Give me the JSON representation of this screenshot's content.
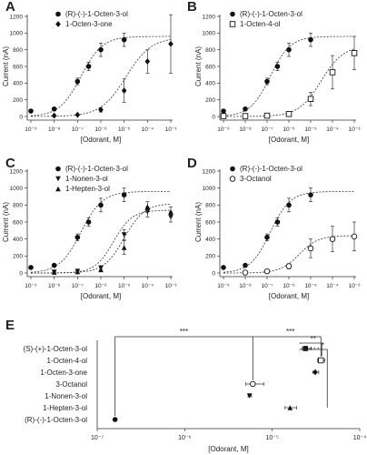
{
  "chart_data": [
    {
      "panel": "A",
      "type": "scatter",
      "xlabel": "[Odorant, M]",
      "ylabel": "Current (nA)",
      "xscale": "log",
      "xlim": [
        1e-09,
        0.001
      ],
      "ylim": [
        0,
        1200
      ],
      "xtick_labels": [
        "10⁻⁹",
        "10⁻⁸",
        "10⁻⁷",
        "10⁻⁶",
        "10⁻⁵",
        "10⁻⁴",
        "10⁻³"
      ],
      "yticks": [
        0,
        200,
        400,
        600,
        800,
        1000,
        1200
      ],
      "legend": "top-left",
      "series": [
        {
          "name": "(R)-(-)-1-Octen-3-ol",
          "marker": "circle",
          "x": [
            1e-09,
            1e-08,
            1e-07,
            3e-07,
            1e-06,
            1e-05
          ],
          "y": [
            65,
            90,
            420,
            600,
            800,
            920
          ],
          "err": [
            10,
            15,
            40,
            50,
            80,
            80
          ],
          "fit": {
            "top": 960,
            "ec50": 1.4e-07,
            "hill": 0.95
          }
        },
        {
          "name": "1-Octen-3-one",
          "marker": "diamond",
          "x": [
            1e-08,
            1e-07,
            1e-06,
            1e-05,
            0.0001,
            0.001
          ],
          "y": [
            10,
            20,
            80,
            310,
            660,
            870
          ],
          "err": [
            5,
            8,
            25,
            140,
            140,
            350
          ],
          "fit": {
            "top": 950,
            "ec50": 1.2e-05,
            "hill": 0.8
          }
        }
      ]
    },
    {
      "panel": "B",
      "type": "scatter",
      "xlabel": "[Odorant, M]",
      "ylabel": "Current (nA)",
      "xscale": "log",
      "xlim": [
        1e-09,
        0.001
      ],
      "ylim": [
        0,
        1200
      ],
      "xtick_labels": [
        "10⁻⁹",
        "10⁻⁸",
        "10⁻⁷",
        "10⁻⁶",
        "10⁻⁵",
        "10⁻⁴",
        "10⁻³"
      ],
      "yticks": [
        0,
        200,
        400,
        600,
        800,
        1000,
        1200
      ],
      "legend": "top-left",
      "series": [
        {
          "name": "(R)-(-)-1-Octen-3-ol",
          "marker": "circle",
          "x": [
            1e-09,
            1e-08,
            1e-07,
            3e-07,
            1e-06,
            1e-05
          ],
          "y": [
            65,
            90,
            420,
            600,
            800,
            920
          ],
          "err": [
            10,
            15,
            40,
            50,
            80,
            80
          ],
          "fit": {
            "top": 960,
            "ec50": 1.4e-07,
            "hill": 0.95
          }
        },
        {
          "name": "1-Octen-4-ol",
          "marker": "square-open",
          "x": [
            1e-09,
            1e-08,
            1e-07,
            1e-06,
            1e-05,
            0.0001,
            0.001
          ],
          "y": [
            5,
            5,
            10,
            30,
            210,
            530,
            760
          ],
          "err": [
            5,
            5,
            8,
            15,
            80,
            200,
            200
          ],
          "fit": {
            "top": 850,
            "ec50": 3e-05,
            "hill": 0.85
          }
        }
      ]
    },
    {
      "panel": "C",
      "type": "scatter",
      "xlabel": "[Odorant, M]",
      "ylabel": "Current (nA)",
      "xscale": "log",
      "xlim": [
        1e-09,
        0.001
      ],
      "ylim": [
        0,
        1200
      ],
      "xtick_labels": [
        "10⁻⁹",
        "10⁻⁸",
        "10⁻⁷",
        "10⁻⁶",
        "10⁻⁵",
        "10⁻⁴",
        "10⁻³"
      ],
      "yticks": [
        0,
        200,
        400,
        600,
        800,
        1000,
        1200
      ],
      "legend": "top-left",
      "series": [
        {
          "name": "(R)-(-)-1-Octen-3-ol",
          "marker": "circle",
          "x": [
            1e-09,
            1e-08,
            1e-07,
            3e-07,
            1e-06,
            1e-05
          ],
          "y": [
            65,
            90,
            420,
            600,
            800,
            920
          ],
          "err": [
            10,
            15,
            40,
            50,
            80,
            80
          ],
          "fit": {
            "top": 960,
            "ec50": 1.4e-07,
            "hill": 0.95
          }
        },
        {
          "name": "1-Nonen-3-ol",
          "marker": "triangle-down",
          "x": [
            1e-08,
            1e-07,
            1e-06,
            1e-05,
            0.0001,
            0.001
          ],
          "y": [
            10,
            20,
            60,
            450,
            720,
            660
          ],
          "err": [
            5,
            8,
            20,
            60,
            60,
            60
          ],
          "fit": {
            "top": 740,
            "ec50": 3.5e-06,
            "hill": 1.1
          }
        },
        {
          "name": "1-Hepten-3-ol",
          "marker": "triangle-up",
          "x": [
            1e-08,
            1e-07,
            1e-06,
            1e-05,
            0.0001,
            0.001
          ],
          "y": [
            10,
            15,
            40,
            300,
            780,
            720
          ],
          "err": [
            5,
            8,
            20,
            80,
            60,
            60
          ],
          "fit": {
            "top": 820,
            "ec50": 1e-05,
            "hill": 1.0
          }
        }
      ]
    },
    {
      "panel": "D",
      "type": "scatter",
      "xlabel": "[Odorant, M]",
      "ylabel": "Current (nA)",
      "xscale": "log",
      "xlim": [
        1e-09,
        0.001
      ],
      "ylim": [
        0,
        1200
      ],
      "xtick_labels": [
        "10⁻⁹",
        "10⁻⁸",
        "10⁻⁷",
        "10⁻⁶",
        "10⁻⁵",
        "10⁻⁴",
        "10⁻³"
      ],
      "yticks": [
        0,
        200,
        400,
        600,
        800,
        1000,
        1200
      ],
      "legend": "top-left",
      "series": [
        {
          "name": "(R)-(-)-1-Octen-3-ol",
          "marker": "circle",
          "x": [
            1e-09,
            1e-08,
            1e-07,
            3e-07,
            1e-06,
            1e-05
          ],
          "y": [
            65,
            90,
            420,
            600,
            800,
            920
          ],
          "err": [
            10,
            15,
            40,
            50,
            80,
            80
          ],
          "fit": {
            "top": 960,
            "ec50": 1.4e-07,
            "hill": 0.95
          }
        },
        {
          "name": "3-Octanol",
          "marker": "circle-open",
          "x": [
            1e-08,
            1e-07,
            1e-06,
            1e-05,
            0.0001,
            0.001
          ],
          "y": [
            5,
            20,
            80,
            290,
            400,
            430
          ],
          "err": [
            5,
            10,
            30,
            110,
            150,
            170
          ],
          "fit": {
            "top": 440,
            "ec50": 3e-06,
            "hill": 1.0
          }
        }
      ]
    },
    {
      "panel": "E",
      "type": "scatter",
      "xlabel": "[Odorant, M]",
      "xscale": "log",
      "xlim": [
        1e-07,
        0.0001
      ],
      "xtick_labels": [
        "10⁻⁷",
        "10⁻⁶",
        "10⁻⁵",
        "10⁻⁴"
      ],
      "categories": [
        "(S)-(+)-1-Octen-3-ol",
        "1-Octen-4-ol",
        "1-Octen-3-one",
        "3-Octanol",
        "1-Nonen-3-ol",
        "1-Hepten-3-ol",
        "(R)-(-)-1-Octen-3-ol"
      ],
      "points": [
        {
          "label": "(S)-(+)-1-Octen-3-ol",
          "x": 2.4e-05,
          "xerr_low": 2.2e-05,
          "xerr_high": 2.8e-05,
          "marker": "square-filled"
        },
        {
          "label": "1-Octen-4-ol",
          "x": 3.6e-05,
          "xerr_low": 3.3e-05,
          "xerr_high": 4e-05,
          "marker": "square-open"
        },
        {
          "label": "1-Octen-3-one",
          "x": 3.1e-05,
          "xerr_low": 2.9e-05,
          "xerr_high": 3.4e-05,
          "marker": "diamond"
        },
        {
          "label": "3-Octanol",
          "x": 6e-06,
          "xerr_low": 5e-06,
          "xerr_high": 8e-06,
          "marker": "circle-open"
        },
        {
          "label": "1-Nonen-3-ol",
          "x": 5.5e-06,
          "xerr_low": 5.3e-06,
          "xerr_high": 5.8e-06,
          "marker": "triangle-down"
        },
        {
          "label": "1-Hepten-3-ol",
          "x": 1.6e-05,
          "xerr_low": 1.4e-05,
          "xerr_high": 1.9e-05,
          "marker": "triangle-up"
        },
        {
          "label": "(R)-(-)-1-Octen-3-ol",
          "x": 1.6e-07,
          "xerr_low": 1.55e-07,
          "xerr_high": 1.65e-07,
          "marker": "circle-filled"
        }
      ],
      "significance": [
        {
          "label": "***",
          "from": "(R)-(-)-1-Octen-3-ol",
          "to": "3-Octanol"
        },
        {
          "label": "***",
          "from": "3-Octanol",
          "to": "1-Octen-4-ol"
        },
        {
          "label": "**",
          "from": "3-Octanol",
          "to": "1-Octen-4-ol"
        },
        {
          "label": "*",
          "from": "1-Hepten-3-ol",
          "to": "1-Octen-4-ol"
        }
      ],
      "tick_marks": [
        "*",
        "*",
        "*"
      ]
    }
  ]
}
